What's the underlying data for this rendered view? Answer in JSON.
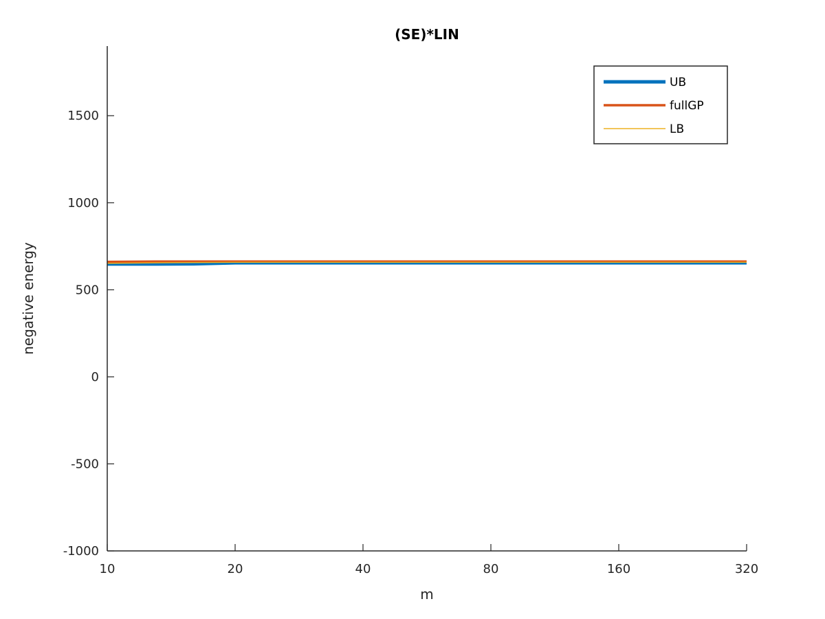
{
  "chart_data": {
    "type": "line",
    "title": "(SE)*LIN",
    "xlabel": "m",
    "ylabel": "negative energy",
    "x_scale": "log2",
    "xlim": [
      10,
      320
    ],
    "ylim": [
      -1000,
      1900
    ],
    "x_ticks": [
      10,
      20,
      40,
      80,
      160,
      320
    ],
    "x_tick_labels": [
      "10",
      "20",
      "40",
      "80",
      "160",
      "320"
    ],
    "y_ticks": [
      -1000,
      -500,
      0,
      500,
      1000,
      1500
    ],
    "y_tick_labels": [
      "-1000",
      "-500",
      "0",
      "500",
      "1000",
      "1500"
    ],
    "grid": false,
    "legend_position": "top-right",
    "series": [
      {
        "name": "UB",
        "color": "#0072BD",
        "x": [
          10,
          13,
          16,
          20,
          40,
          80,
          160,
          320
        ],
        "y": [
          648,
          648,
          649,
          655,
          655,
          655,
          655,
          655
        ]
      },
      {
        "name": "fullGP",
        "color": "#D95319",
        "x": [
          10,
          13,
          16,
          20,
          40,
          80,
          160,
          320
        ],
        "y": [
          660,
          662,
          662,
          662,
          662,
          662,
          662,
          662
        ]
      },
      {
        "name": "LB",
        "color": "#EDB120",
        "x": [
          10,
          13,
          17,
          20,
          40,
          80,
          160,
          320
        ],
        "y": [
          652,
          655,
          657,
          658,
          658,
          658,
          658,
          658
        ]
      }
    ]
  }
}
